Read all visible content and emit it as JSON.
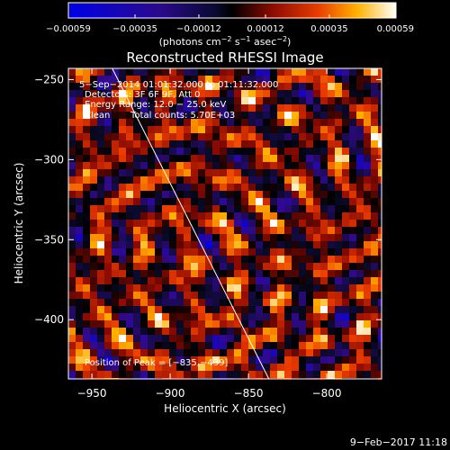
{
  "chart_data": {
    "type": "heatmap",
    "title": "Reconstructed RHESSI Image",
    "xlabel": "Heliocentric X (arcsec)",
    "ylabel": "Heliocentric Y (arcsec)",
    "xlim": [
      -965,
      -765
    ],
    "ylim": [
      -437,
      -243
    ],
    "x_ticks": [
      -950,
      -900,
      -850,
      -800
    ],
    "y_ticks": [
      -250,
      -300,
      -350,
      -400
    ],
    "x_tick_labels": [
      "−950",
      "−900",
      "−850",
      "−800"
    ],
    "y_tick_labels": [
      "−250",
      "−300",
      "−350",
      "−400"
    ],
    "colorbar": {
      "range": [
        -0.00059,
        0.00059
      ],
      "ticks": [
        -0.00059,
        -0.00035,
        -0.00012,
        0.00012,
        0.00035,
        0.00059
      ],
      "tick_labels": [
        "−0.00059",
        "−0.00035",
        "−0.00012",
        "0.00012",
        "0.00035",
        "0.00059"
      ],
      "units_text": "(photons cm",
      "units_exp1": "−2",
      "units_mid": " s",
      "units_exp2": "−1",
      "units_mid2": " asec",
      "units_exp3": "−2",
      "units_end": ")"
    },
    "annotations": {
      "time_range": "5−Sep−2014 01:01:32.000 to 01:11:32.000",
      "detectors": "Detectors: 3F 6F 9F, Att 0",
      "energy": "Energy Range: 12.0 − 25.0 keV",
      "algorithm": "Clean",
      "counts": "Total counts: 5.70E+03",
      "peak": "Position of Peak = [−835,−439]"
    },
    "limb_line": {
      "x": [
        -937,
        -837
      ],
      "y": [
        -243,
        -437
      ]
    },
    "grid": false,
    "colors": {
      "background": "#000000",
      "frame": "#ffffff"
    }
  },
  "footer": {
    "timestamp": "9−Feb−2017 11:18"
  }
}
